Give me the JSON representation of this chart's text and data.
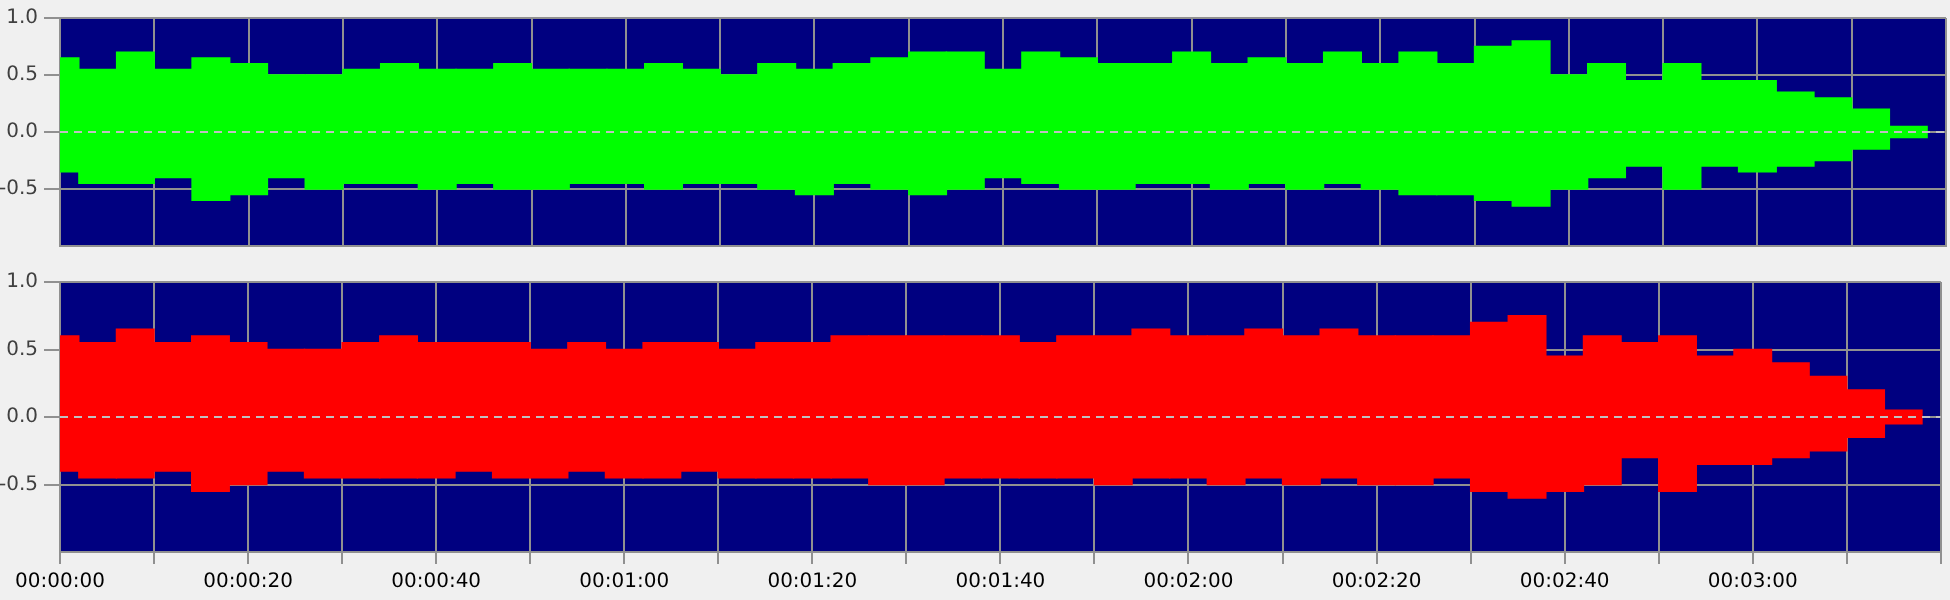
{
  "chart_data": [
    {
      "type": "bar",
      "x": [
        0,
        4,
        8,
        12,
        16,
        20,
        24,
        28,
        32,
        36,
        40,
        44,
        48,
        52,
        56,
        60,
        64,
        68,
        72,
        76,
        80,
        84,
        88,
        92,
        96,
        100,
        104,
        108,
        112,
        116,
        120,
        124,
        128,
        132,
        136,
        140,
        144,
        148,
        152,
        156,
        160,
        164,
        168,
        172,
        176,
        180,
        184,
        188,
        192,
        196
      ],
      "series": [
        {
          "color": "#00ff00",
          "base": [
            -0.35,
            -0.45,
            -0.45,
            -0.4,
            -0.6,
            -0.55,
            -0.4,
            -0.5,
            -0.45,
            -0.45,
            -0.5,
            -0.45,
            -0.5,
            -0.5,
            -0.45,
            -0.45,
            -0.5,
            -0.45,
            -0.45,
            -0.5,
            -0.55,
            -0.45,
            -0.5,
            -0.55,
            -0.5,
            -0.4,
            -0.45,
            -0.5,
            -0.5,
            -0.45,
            -0.45,
            -0.5,
            -0.45,
            -0.5,
            -0.45,
            -0.5,
            -0.55,
            -0.55,
            -0.6,
            -0.65,
            -0.5,
            -0.4,
            -0.3,
            -0.5,
            -0.3,
            -0.35,
            -0.3,
            -0.25,
            -0.15,
            -0.05
          ],
          "values": [
            1.0,
            1.0,
            1.15,
            0.95,
            1.25,
            1.15,
            0.9,
            1.0,
            1.0,
            1.05,
            1.05,
            1.0,
            1.1,
            1.05,
            1.0,
            1.0,
            1.1,
            1.0,
            0.95,
            1.1,
            1.1,
            1.05,
            1.15,
            1.25,
            1.2,
            0.95,
            1.15,
            1.15,
            1.1,
            1.05,
            1.15,
            1.1,
            1.1,
            1.1,
            1.15,
            1.1,
            1.25,
            1.15,
            1.35,
            1.45,
            1.0,
            1.0,
            0.75,
            1.1,
            0.75,
            0.8,
            0.65,
            0.55,
            0.35,
            0.1
          ]
        }
      ],
      "xlim": [
        0,
        200
      ],
      "xticks": [
        {
          "value": 0,
          "label": null
        },
        {
          "value": 10,
          "label": null
        },
        {
          "value": 20,
          "label": null
        },
        {
          "value": 30,
          "label": null
        },
        {
          "value": 40,
          "label": null
        },
        {
          "value": 50,
          "label": null
        },
        {
          "value": 60,
          "label": null
        },
        {
          "value": 70,
          "label": null
        },
        {
          "value": 80,
          "label": null
        },
        {
          "value": 90,
          "label": null
        },
        {
          "value": 100,
          "label": null
        },
        {
          "value": 110,
          "label": null
        },
        {
          "value": 120,
          "label": null
        },
        {
          "value": 130,
          "label": null
        },
        {
          "value": 140,
          "label": null
        },
        {
          "value": 150,
          "label": null
        },
        {
          "value": 160,
          "label": null
        },
        {
          "value": 170,
          "label": null
        },
        {
          "value": 180,
          "label": null
        },
        {
          "value": 190,
          "label": null
        },
        {
          "value": 200,
          "label": null
        }
      ],
      "ylim": [
        -1,
        1
      ],
      "yticks": [
        {
          "value": 1,
          "label": "1.0"
        },
        {
          "value": 0.5,
          "label": "0.5"
        },
        {
          "value": 0,
          "label": "0.0"
        },
        {
          "value": -0.5,
          "label": "-0.5"
        }
      ],
      "ref_lines": [
        {
          "axis": "y",
          "value": 0,
          "color": "#c0c0c0",
          "line_style": "dashed"
        }
      ],
      "grid": true,
      "tick_labels": "y"
    },
    {
      "type": "bar",
      "x": [
        0,
        4,
        8,
        12,
        16,
        20,
        24,
        28,
        32,
        36,
        40,
        44,
        48,
        52,
        56,
        60,
        64,
        68,
        72,
        76,
        80,
        84,
        88,
        92,
        96,
        100,
        104,
        108,
        112,
        116,
        120,
        124,
        128,
        132,
        136,
        140,
        144,
        148,
        152,
        156,
        160,
        164,
        168,
        172,
        176,
        180,
        184,
        188,
        192,
        196
      ],
      "series": [
        {
          "color": "#ff0000",
          "base": [
            -0.4,
            -0.45,
            -0.45,
            -0.4,
            -0.55,
            -0.5,
            -0.4,
            -0.45,
            -0.45,
            -0.45,
            -0.45,
            -0.4,
            -0.45,
            -0.45,
            -0.4,
            -0.45,
            -0.45,
            -0.4,
            -0.45,
            -0.45,
            -0.45,
            -0.45,
            -0.5,
            -0.5,
            -0.45,
            -0.45,
            -0.45,
            -0.45,
            -0.5,
            -0.45,
            -0.45,
            -0.5,
            -0.45,
            -0.5,
            -0.45,
            -0.5,
            -0.5,
            -0.45,
            -0.55,
            -0.6,
            -0.55,
            -0.5,
            -0.3,
            -0.55,
            -0.35,
            -0.35,
            -0.3,
            -0.25,
            -0.15,
            -0.05
          ],
          "values": [
            1.0,
            1.0,
            1.1,
            0.95,
            1.15,
            1.05,
            0.9,
            0.95,
            1.0,
            1.05,
            1.0,
            0.95,
            1.0,
            0.95,
            0.95,
            0.95,
            1.0,
            0.95,
            0.95,
            1.0,
            1.0,
            1.05,
            1.1,
            1.1,
            1.05,
            1.05,
            1.0,
            1.05,
            1.1,
            1.1,
            1.05,
            1.1,
            1.1,
            1.1,
            1.1,
            1.1,
            1.1,
            1.05,
            1.25,
            1.35,
            1.0,
            1.1,
            0.85,
            1.15,
            0.8,
            0.85,
            0.7,
            0.55,
            0.35,
            0.1
          ]
        }
      ],
      "xlim": [
        0,
        200
      ],
      "xticks": [
        {
          "value": 0,
          "label": "00:00:00"
        },
        {
          "value": 10,
          "label": null
        },
        {
          "value": 20,
          "label": "00:00:20"
        },
        {
          "value": 30,
          "label": null
        },
        {
          "value": 40,
          "label": "00:00:40"
        },
        {
          "value": 50,
          "label": null
        },
        {
          "value": 60,
          "label": "00:01:00"
        },
        {
          "value": 70,
          "label": null
        },
        {
          "value": 80,
          "label": "00:01:20"
        },
        {
          "value": 90,
          "label": null
        },
        {
          "value": 100,
          "label": "00:01:40"
        },
        {
          "value": 110,
          "label": null
        },
        {
          "value": 120,
          "label": "00:02:00"
        },
        {
          "value": 130,
          "label": null
        },
        {
          "value": 140,
          "label": "00:02:20"
        },
        {
          "value": 150,
          "label": null
        },
        {
          "value": 160,
          "label": "00:02:40"
        },
        {
          "value": 170,
          "label": null
        },
        {
          "value": 180,
          "label": "00:03:00"
        },
        {
          "value": 190,
          "label": null
        },
        {
          "value": 200,
          "label": null
        }
      ],
      "ylim": [
        -1,
        1
      ],
      "yticks": [
        {
          "value": 1,
          "label": "1.0"
        },
        {
          "value": 0.5,
          "label": "0.5"
        },
        {
          "value": 0,
          "label": "0.0"
        },
        {
          "value": -0.5,
          "label": "-0.5"
        }
      ],
      "ref_lines": [
        {
          "axis": "y",
          "value": 0,
          "color": "#c0c0c0",
          "line_style": "dashed"
        }
      ],
      "grid": true
    }
  ]
}
